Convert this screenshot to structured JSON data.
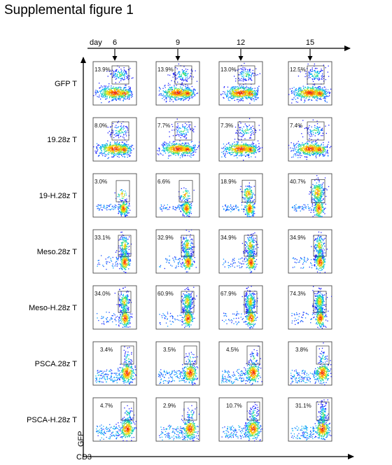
{
  "title": "Supplemental figure 1",
  "chart_data": {
    "type": "scatter",
    "subtype": "flow-cytometry-density-plot-grid",
    "title": "Supplemental figure 1",
    "time_axis_label": "day",
    "days": [
      "6",
      "9",
      "12",
      "15"
    ],
    "xlabel": "CD3",
    "ylabel": "GFP",
    "rows": [
      {
        "name": "GFP T",
        "percents": [
          "13.9%",
          "13.9%",
          "13.0%",
          "12.5%"
        ],
        "pattern": "split"
      },
      {
        "name": "19.28z T",
        "percents": [
          "8.0%",
          "7.7%",
          "7.3%",
          "7.4%"
        ],
        "pattern": "split"
      },
      {
        "name": "19-H.28z T",
        "percents": [
          "3.0%",
          "6.6%",
          "18.9%",
          "40.7%"
        ],
        "pattern": "expanding"
      },
      {
        "name": "Meso.28z T",
        "percents": [
          "33.1%",
          "32.9%",
          "34.9%",
          "34.9%"
        ],
        "pattern": "column"
      },
      {
        "name": "Meso-H.28z T",
        "percents": [
          "34.0%",
          "60.9%",
          "67.9%",
          "74.3%"
        ],
        "pattern": "column"
      },
      {
        "name": "PSCA.28z T",
        "percents": [
          "3.4%",
          "3.5%",
          "4.5%",
          "3.8%"
        ],
        "pattern": "psca"
      },
      {
        "name": "PSCA-H.28z T",
        "percents": [
          "4.7%",
          "2.9%",
          "10.7%",
          "31.1%"
        ],
        "pattern": "psca"
      }
    ],
    "gate_fraction_percent": [
      [
        13.9,
        13.9,
        13.0,
        12.5
      ],
      [
        8.0,
        7.7,
        7.3,
        7.4
      ],
      [
        3.0,
        6.6,
        18.9,
        40.7
      ],
      [
        33.1,
        32.9,
        34.9,
        34.9
      ],
      [
        34.0,
        60.9,
        67.9,
        74.3
      ],
      [
        3.4,
        3.5,
        4.5,
        3.8
      ],
      [
        4.7,
        2.9,
        10.7,
        31.1
      ]
    ],
    "colormap": [
      "#1a1aff",
      "#00b7ff",
      "#23e08a",
      "#ffe100",
      "#ff7a00",
      "#e8001a"
    ]
  }
}
